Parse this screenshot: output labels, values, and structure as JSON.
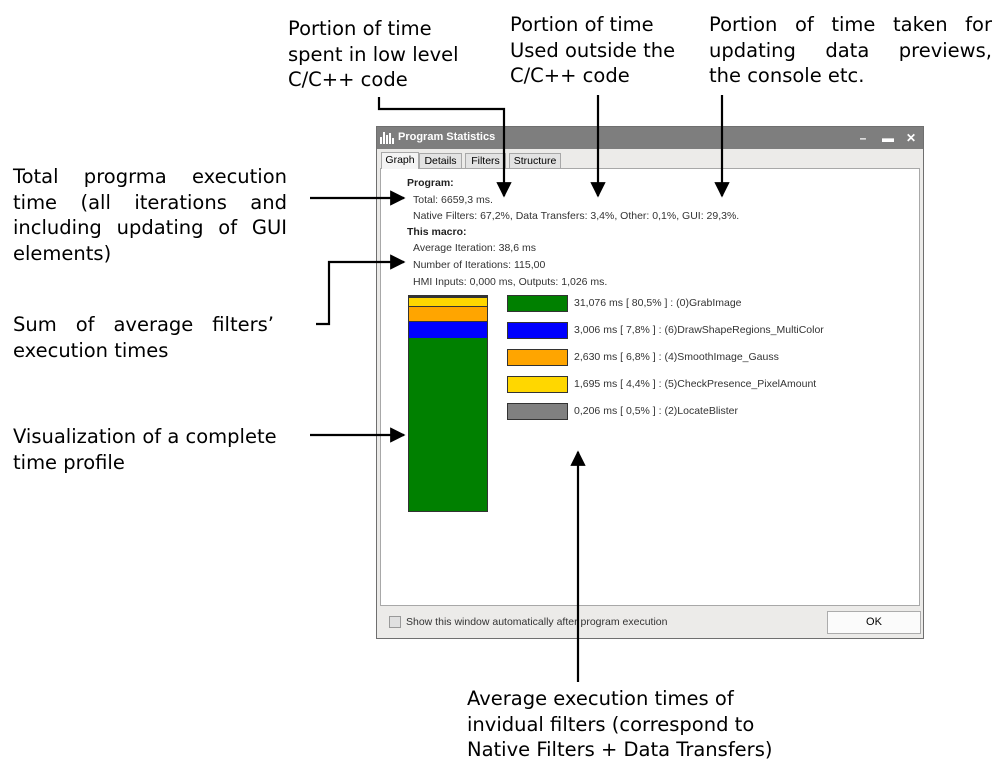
{
  "annotations": {
    "low_level": [
      "Portion of time",
      "spent in low level",
      "C/C++ code"
    ],
    "outside": [
      "Portion of time",
      "Used outside the",
      "C/C++ code"
    ],
    "gui": [
      "Portion of time taken for",
      "updating data previews,",
      "the console etc."
    ],
    "total": [
      "Total progrma execution",
      "time (all iterations and",
      "including updating of GUI",
      "elements)"
    ],
    "sum": [
      "Sum of average filters’",
      "execution times"
    ],
    "visual": [
      "Visualization of a complete",
      "time profile"
    ],
    "average": [
      "Average execution times of",
      "invidual filters (correspond to",
      "Native Filters + Data Transfers)"
    ]
  },
  "window": {
    "title": "Program Statistics",
    "tabs": [
      "Graph",
      "Details",
      "Filters",
      "Structure"
    ],
    "active_tab": 0,
    "program_heading": "Program:",
    "total": "Total: 6659,3 ms.",
    "breakdown": "Native Filters: 67,2%, Data Transfers: 3,4%, Other: 0,1%, GUI: 29,3%.",
    "macro_heading": "This macro:",
    "avg_iteration": "Average Iteration: 38,6 ms",
    "num_iterations": "Number of Iterations: 115,00",
    "hmi": "HMI Inputs: 0,000 ms, Outputs: 1,026 ms.",
    "checkbox_label": "Show this window automatically after program execution",
    "ok_label": "OK"
  },
  "chart_data": {
    "type": "bar",
    "stacked": true,
    "series": [
      {
        "name": "(0)GrabImage",
        "value_ms": 31.076,
        "percent": 80.5,
        "color": "#008000",
        "label": "31,076 ms [ 80,5% ] : (0)GrabImage"
      },
      {
        "name": "(6)DrawShapeRegions_MultiColor",
        "value_ms": 3.006,
        "percent": 7.8,
        "color": "#0000ff",
        "label": "3,006 ms [ 7,8% ] : (6)DrawShapeRegions_MultiColor"
      },
      {
        "name": "(4)SmoothImage_Gauss",
        "value_ms": 2.63,
        "percent": 6.8,
        "color": "#ffa500",
        "label": "2,630 ms [ 6,8% ] : (4)SmoothImage_Gauss"
      },
      {
        "name": "(5)CheckPresence_PixelAmount",
        "value_ms": 1.695,
        "percent": 4.4,
        "color": "#ffd700",
        "label": "1,695 ms [ 4,4% ] : (5)CheckPresence_PixelAmount"
      },
      {
        "name": "(2)LocateBlister",
        "value_ms": 0.206,
        "percent": 0.5,
        "color": "#808080",
        "label": "0,206 ms [ 0,5% ] : (2)LocateBlister"
      }
    ]
  }
}
